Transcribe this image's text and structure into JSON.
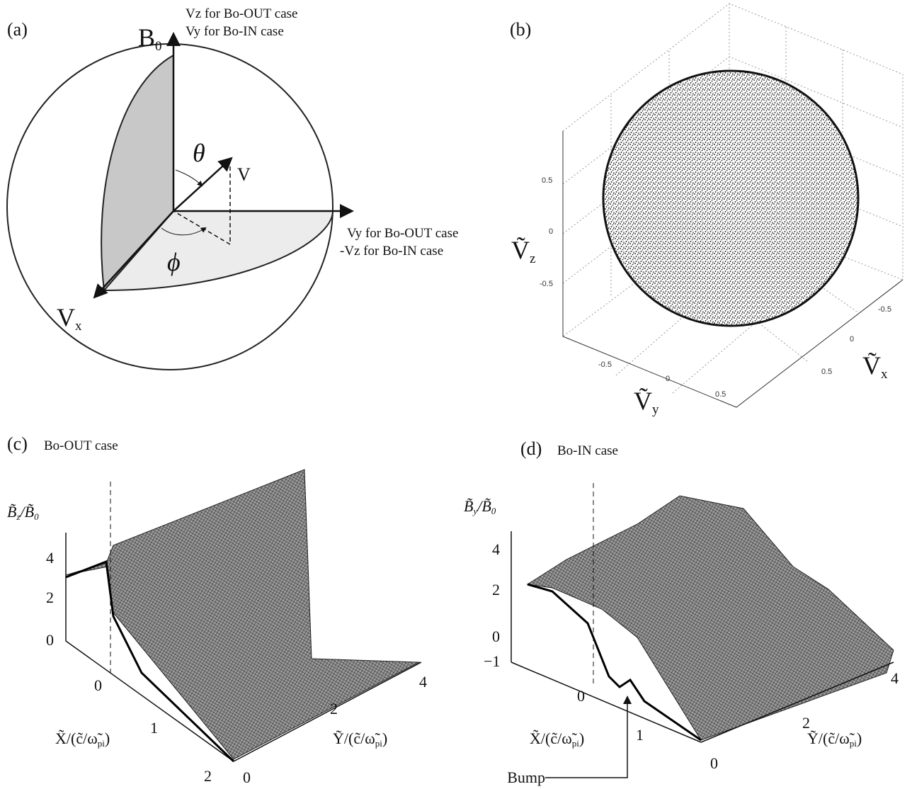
{
  "panel_a": {
    "label": "(a)",
    "axis_z": "B",
    "axis_z_sub": "0",
    "top_note": [
      "Vz for Bo-OUT case",
      "Vy for Bo-IN case"
    ],
    "right_note": [
      "Vy for Bo-OUT case",
      "-Vz for Bo-IN case"
    ],
    "theta": "θ",
    "phi": "ϕ",
    "v": "V",
    "vx": "V",
    "vx_sub": "x"
  },
  "panel_b": {
    "label": "(b)",
    "z_ticks": [
      "0.5",
      "0",
      "-0.5"
    ],
    "y_ticks": [
      "-0.5",
      "0",
      "0.5"
    ],
    "x_ticks": [
      "-0.5",
      "0",
      "0.5"
    ],
    "z_label": "Ṽ",
    "z_sub": "z",
    "y_label": "Ṽ",
    "y_sub": "y",
    "x_label": "Ṽ",
    "x_sub": "x"
  },
  "panel_c": {
    "label": "(c)",
    "title": "Bo-OUT case",
    "z_label": [
      "B̃",
      "z",
      "/B̃",
      "0"
    ],
    "z_ticks": [
      "4",
      "2",
      "0"
    ],
    "x_ticks": [
      "0",
      "1",
      "2"
    ],
    "y_ticks": [
      "0",
      "2",
      "4"
    ],
    "x_label": [
      "X̃/(c̃/ω̃",
      "pi",
      ")"
    ],
    "y_label": [
      "Ỹ/(c̃/ω̃",
      "pi",
      ")"
    ]
  },
  "panel_d": {
    "label": "(d)",
    "title": "Bo-IN case",
    "z_label": [
      "B̃",
      "y",
      "/B̃",
      "0"
    ],
    "z_ticks": [
      "4",
      "2",
      "0",
      "−1"
    ],
    "x_ticks": [
      "0",
      "1"
    ],
    "y_ticks": [
      "0",
      "2",
      "4"
    ],
    "x_label": [
      "X̃/(c̃/ω̃",
      "pi",
      ")"
    ],
    "y_label": [
      "Ỹ/(c̃/ω̃",
      "pi",
      ")"
    ],
    "annotation": "Bump"
  }
}
